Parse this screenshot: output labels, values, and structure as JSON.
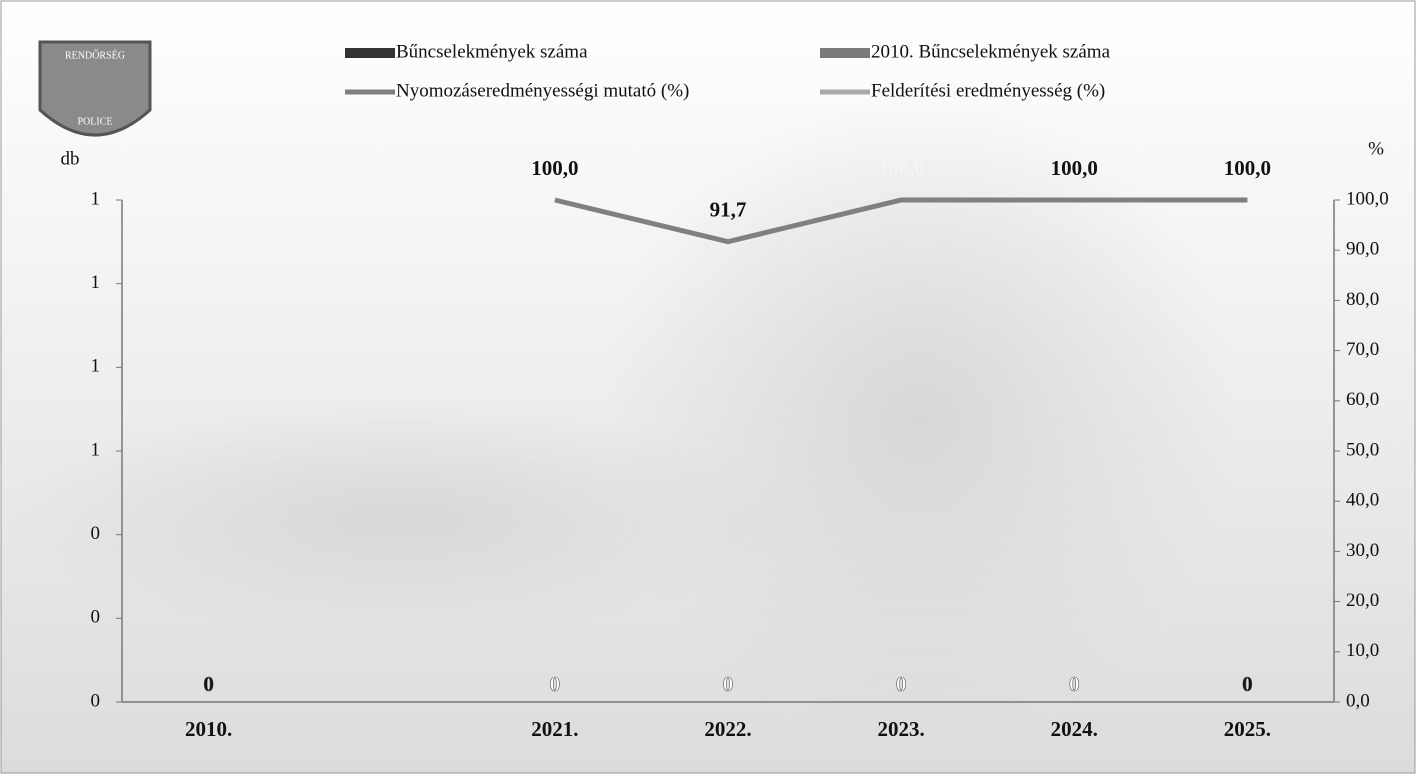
{
  "logo": {
    "top": "RENDŐRSÉG",
    "bottom": "POLICE"
  },
  "chart_data": {
    "type": "bar",
    "y_label": "db",
    "y2_label": "%",
    "categories": [
      "2010.",
      null,
      "2021.",
      "2022.",
      "2023.",
      "2024.",
      "2025."
    ],
    "series": [
      {
        "name": "Bűncselekmények száma",
        "type": "bar",
        "color": "#333333",
        "label_color": "#111111",
        "values": [
          0,
          null,
          null,
          null,
          null,
          null,
          0
        ]
      },
      {
        "name": "2010. Bűncselekmények száma",
        "type": "bar",
        "color": "#7a7a7a",
        "label_color": "#ffffff",
        "values": [
          null,
          null,
          0,
          0,
          0,
          0,
          null
        ]
      },
      {
        "name": "Nyomozáseredményességi mutató (%)",
        "type": "line",
        "axis": "y2",
        "color": "#808080",
        "label_color": "#111111",
        "values": [
          null,
          null,
          100,
          91.7,
          100,
          100,
          100
        ],
        "value_labels": [
          null,
          null,
          "100,0",
          "91,7",
          "100,0",
          "100,0",
          "100,0"
        ]
      },
      {
        "name": "Felderítési eredményesség (%)",
        "type": "line",
        "axis": "y2",
        "color": "#a8a8a8",
        "label_color": "#111111",
        "values": [
          null,
          null,
          null,
          null,
          null,
          null,
          null
        ]
      }
    ],
    "ylim": [
      0,
      1.2
    ],
    "yticks": [
      0,
      {
        "value": 0.2,
        "label": "0"
      },
      {
        "value": 0.4,
        "label": "0"
      },
      {
        "value": 0.6,
        "label": "1"
      },
      {
        "value": 0.8,
        "label": "1"
      },
      {
        "value": 1.0,
        "label": "1"
      },
      {
        "value": 1.2,
        "label": "1"
      }
    ],
    "y2lim": [
      0,
      100
    ],
    "y2ticks": [
      {
        "value": 0,
        "label": "0,0"
      },
      {
        "value": 10,
        "label": "10,0"
      },
      {
        "value": 20,
        "label": "20,0"
      },
      {
        "value": 30,
        "label": "30,0"
      },
      {
        "value": 40,
        "label": "40,0"
      },
      {
        "value": 50,
        "label": "50,0"
      },
      {
        "value": 60,
        "label": "60,0"
      },
      {
        "value": 70,
        "label": "70,0"
      },
      {
        "value": 80,
        "label": "80,0"
      },
      {
        "value": 90,
        "label": "90,0"
      },
      {
        "value": 100,
        "label": "100,0"
      }
    ]
  }
}
